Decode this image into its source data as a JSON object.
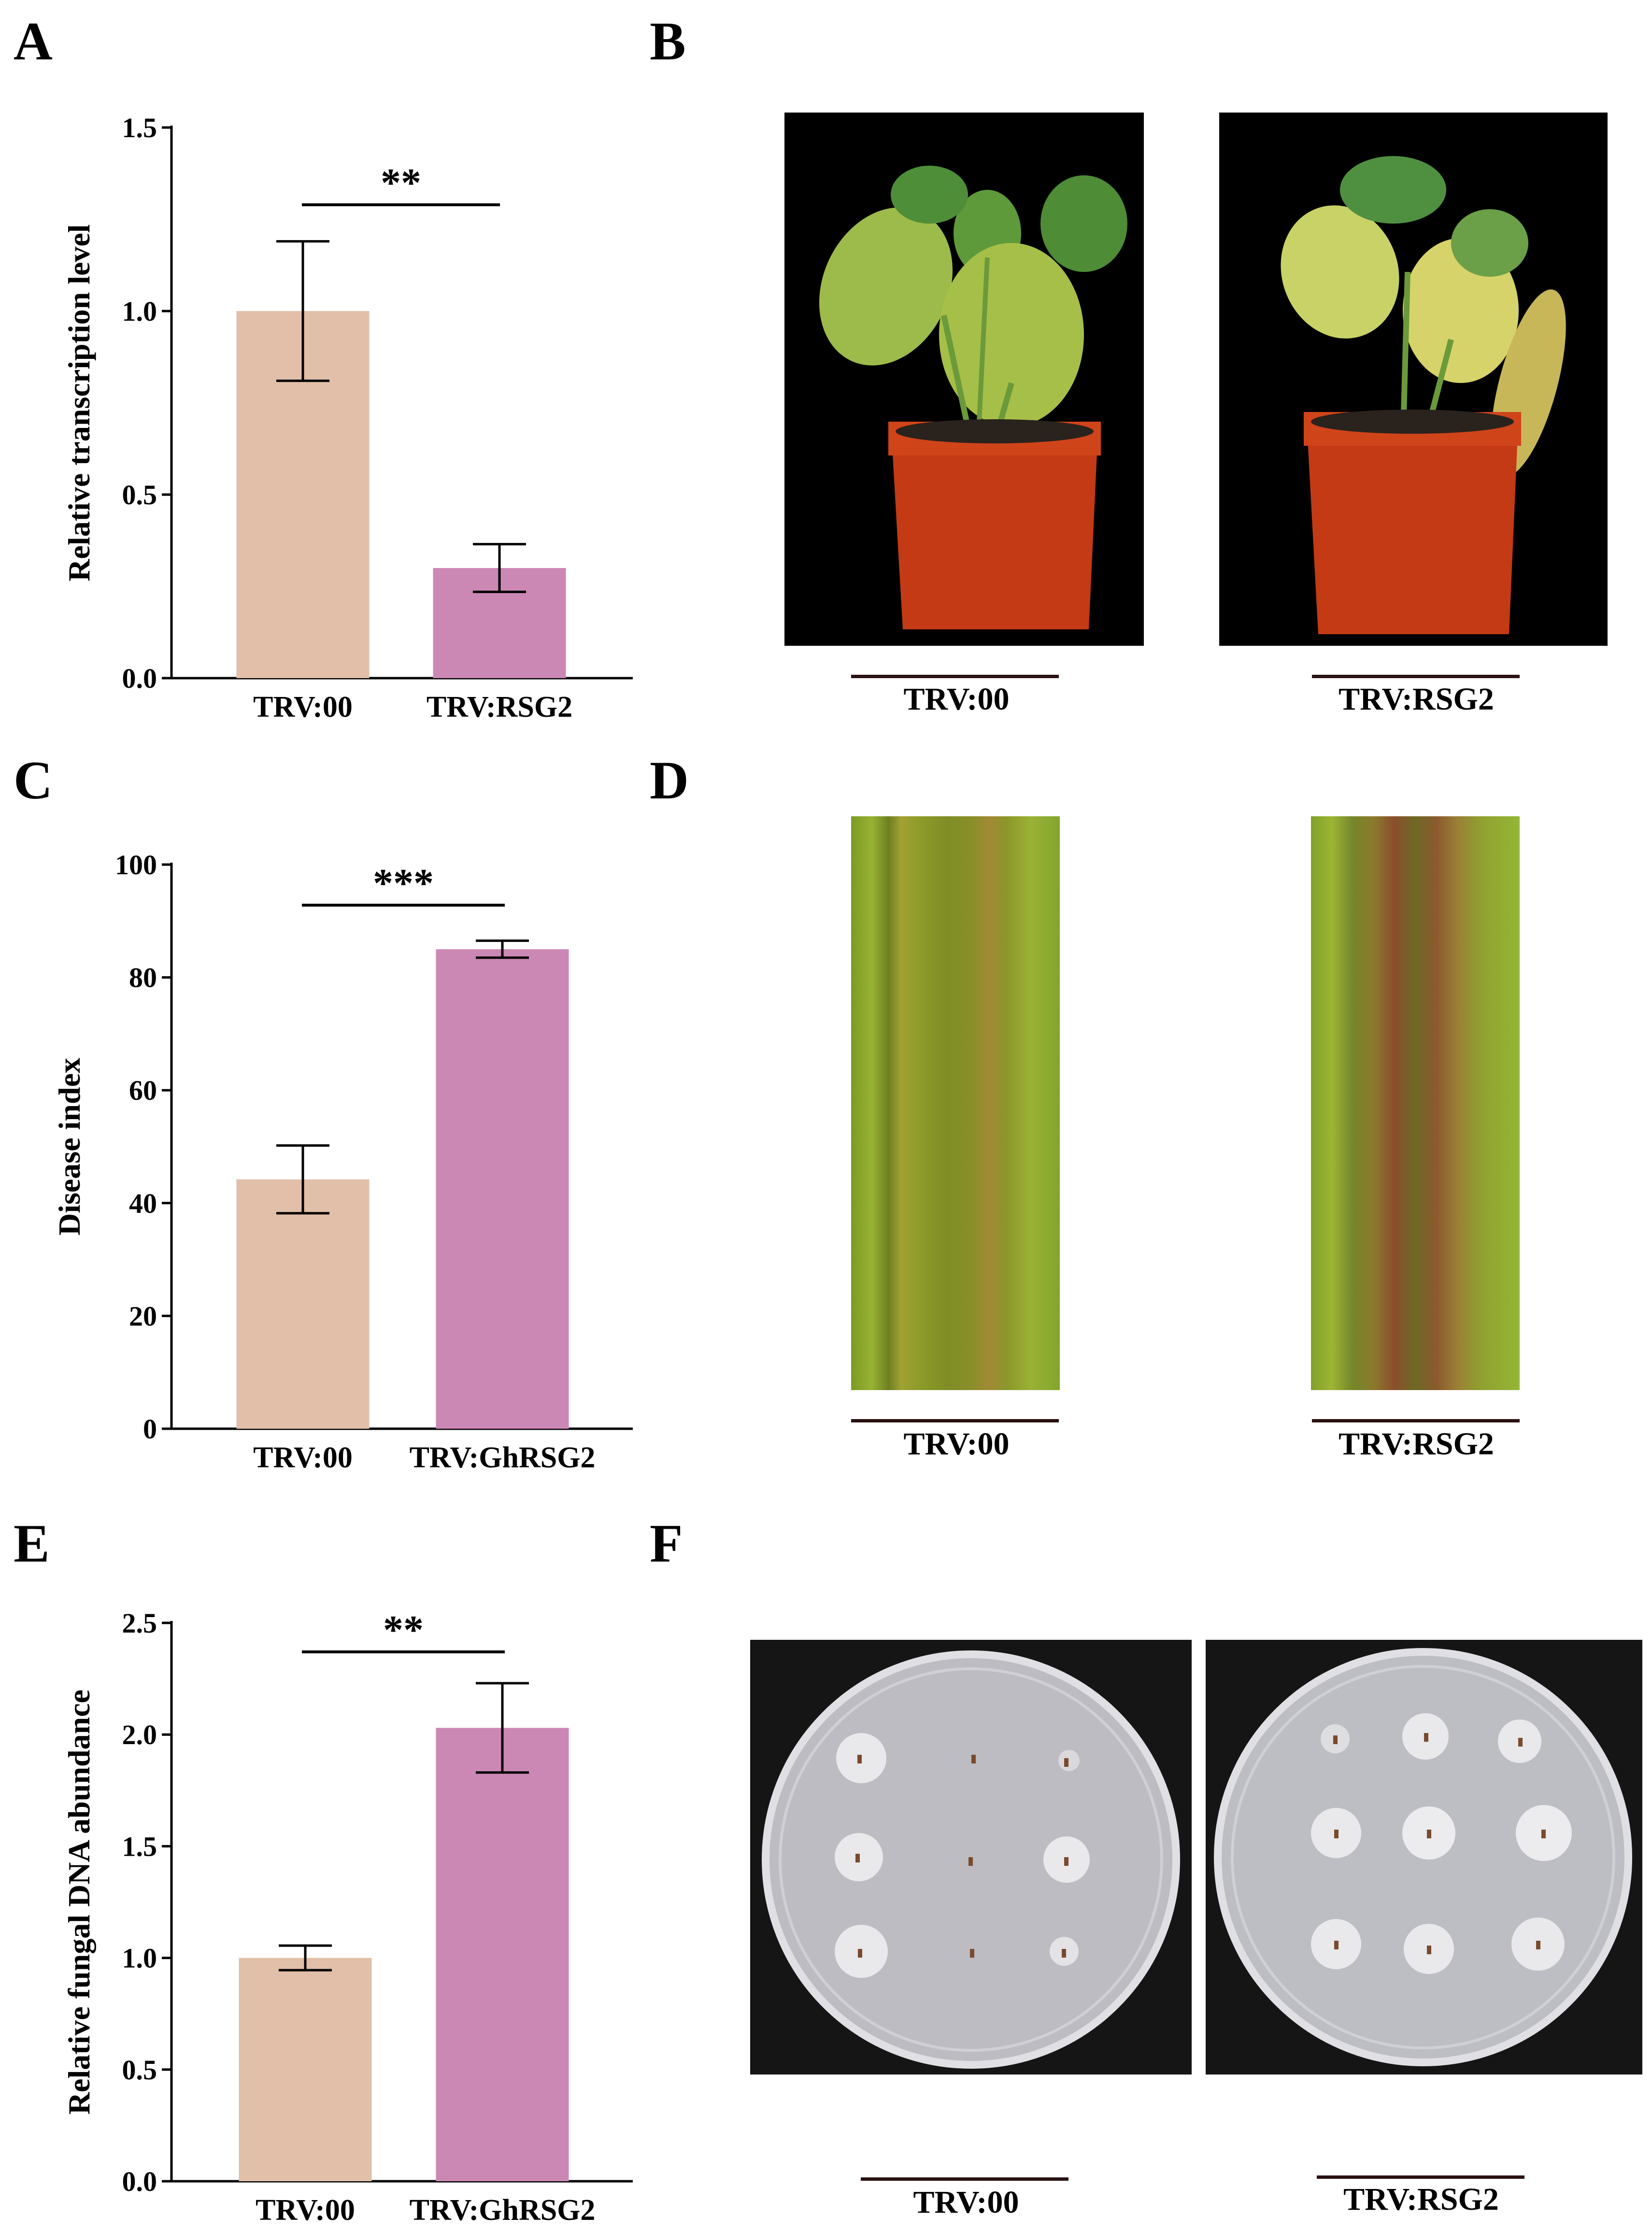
{
  "panels": {
    "A": "A",
    "B": "B",
    "C": "C",
    "D": "D",
    "E": "E",
    "F": "F"
  },
  "colors": {
    "control": "#e2bfa8",
    "treated": "#cc88b5"
  },
  "chart_data": [
    {
      "type": "bar",
      "panel": "A",
      "ylabel": "Relative transcription level",
      "categories": [
        "TRV:00",
        "TRV:RSG2"
      ],
      "values": [
        1.0,
        0.3
      ],
      "errors": [
        0.19,
        0.065
      ],
      "ylim": [
        0,
        1.5
      ],
      "ticks": [
        0,
        0.5,
        1.0,
        1.5
      ],
      "tick_labels": [
        "0.0",
        "0.5",
        "1.0",
        "1.5"
      ],
      "significance": "**"
    },
    {
      "type": "bar",
      "panel": "C",
      "ylabel": "Disease index",
      "categories": [
        "TRV:00",
        "TRV:GhRSG2"
      ],
      "values": [
        44.2,
        85.0
      ],
      "errors": [
        6.0,
        1.5
      ],
      "ylim": [
        0,
        100
      ],
      "ticks": [
        0,
        20,
        40,
        60,
        80,
        100
      ],
      "tick_labels": [
        "0",
        "20",
        "40",
        "60",
        "80",
        "100"
      ],
      "significance": "***"
    },
    {
      "type": "bar",
      "panel": "E",
      "ylabel": "Relative fungal DNA abundance",
      "categories": [
        "TRV:00",
        "TRV:GhRSG2"
      ],
      "values": [
        1.0,
        2.03
      ],
      "errors": [
        0.055,
        0.2
      ],
      "ylim": [
        0,
        2.5
      ],
      "ticks": [
        0,
        0.5,
        1.0,
        1.5,
        2.0,
        2.5
      ],
      "tick_labels": [
        "0.0",
        "0.5",
        "1.0",
        "1.5",
        "2.0",
        "2.5"
      ],
      "significance": "**"
    }
  ],
  "photo_labels": {
    "B": [
      "TRV:00",
      "TRV:RSG2"
    ],
    "D": [
      "TRV:00",
      "TRV:RSG2"
    ],
    "F": [
      "TRV:00",
      "TRV:RSG2"
    ]
  }
}
